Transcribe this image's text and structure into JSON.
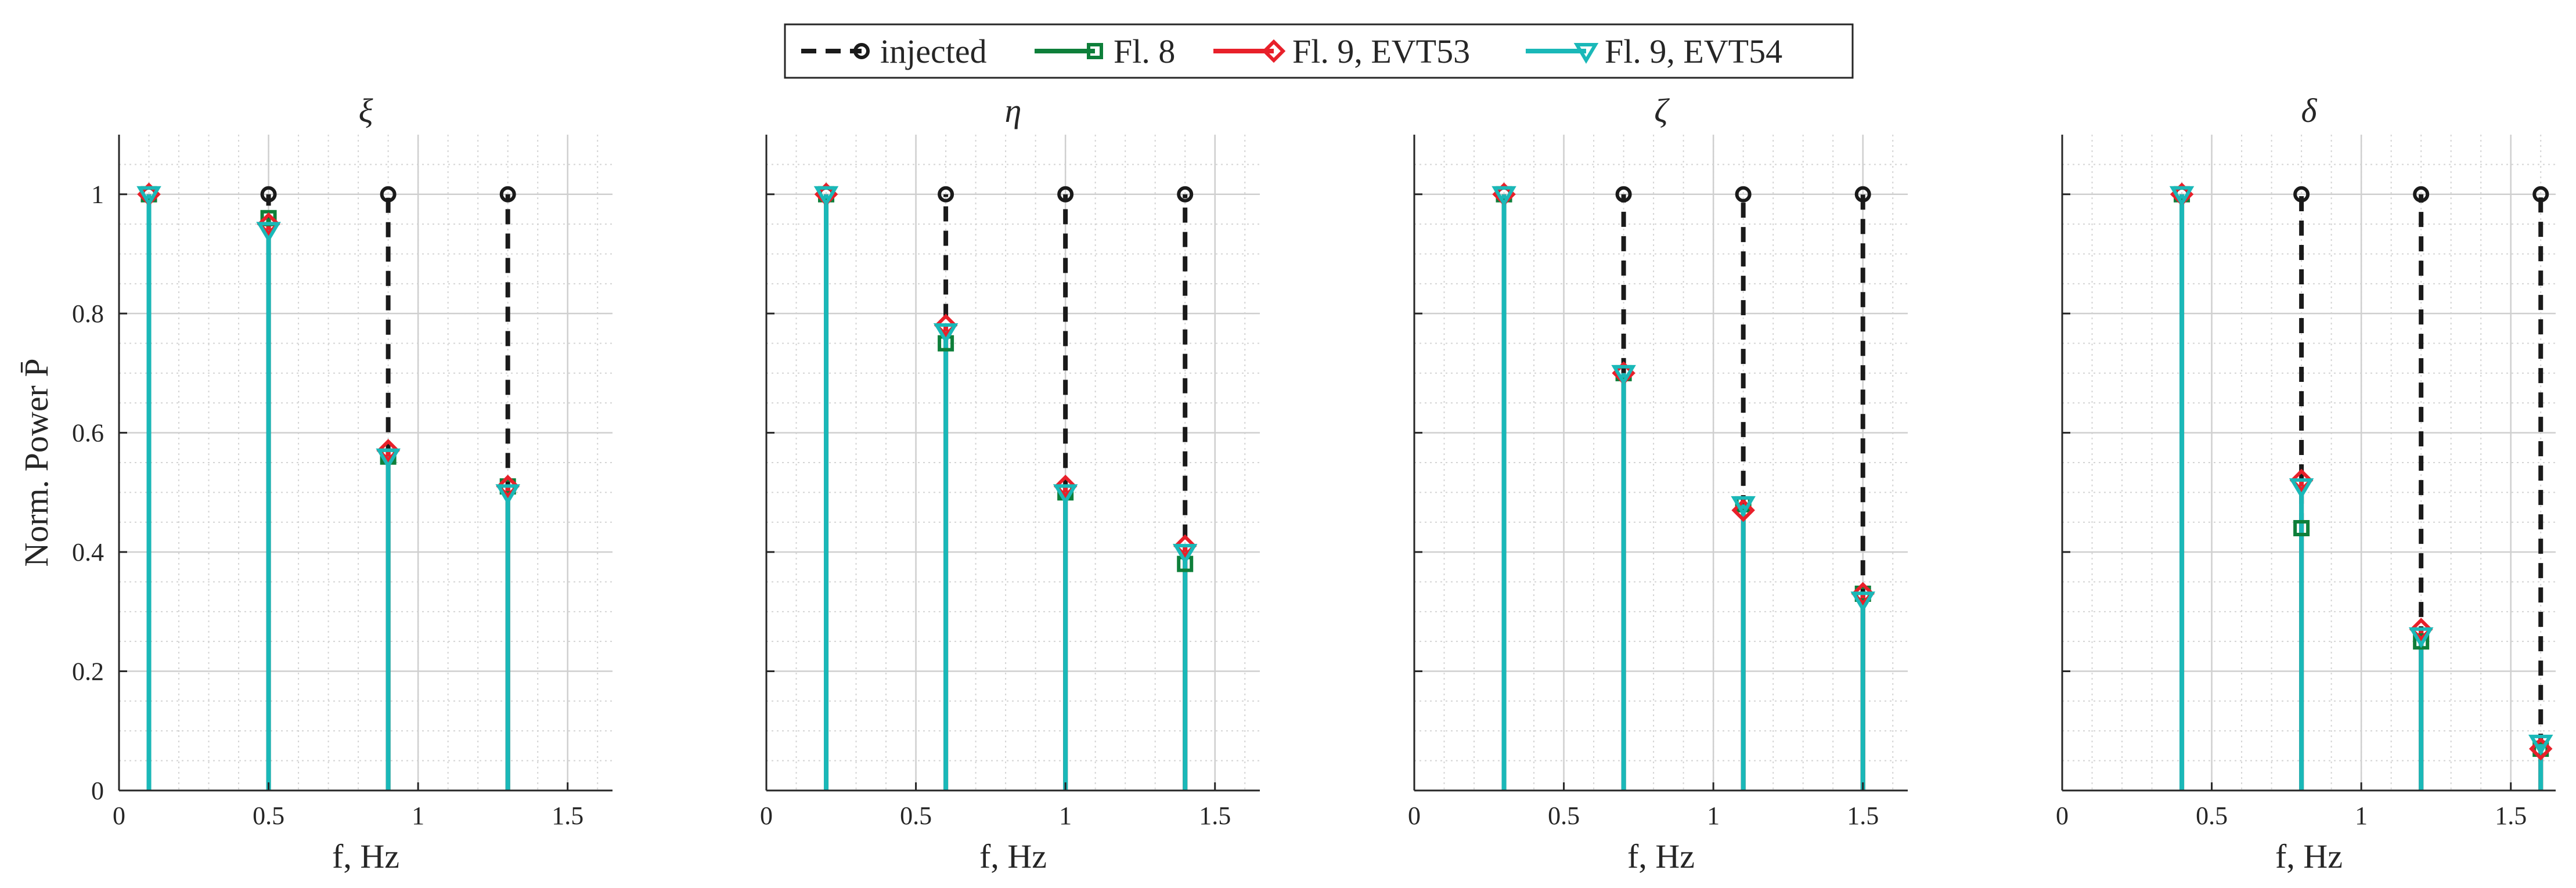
{
  "chart_data": {
    "type": "stem",
    "y_label": "Norm. Power P̄",
    "x_label": "f, Hz",
    "xlim": [
      0,
      1.65
    ],
    "ylim": [
      0,
      1.1
    ],
    "x_ticks": [
      0,
      0.5,
      1,
      1.5
    ],
    "x_tick_labels": [
      "0",
      "0.5",
      "1",
      "1.5"
    ],
    "y_ticks": [
      0,
      0.2,
      0.4,
      0.6,
      0.8,
      1
    ],
    "y_tick_labels": [
      "0",
      "0.2",
      "0.4",
      "0.6",
      "0.8",
      "1"
    ],
    "grid": true,
    "legend_position": "top-center",
    "legend": [
      {
        "name": "injected",
        "color": "#1a1a1a",
        "marker": "circle",
        "line": "dashed"
      },
      {
        "name": "Fl. 8",
        "color": "#0e7f3a",
        "marker": "square",
        "line": "solid"
      },
      {
        "name": "Fl. 9, EVT53",
        "color": "#e8202a",
        "marker": "diamond",
        "line": "solid"
      },
      {
        "name": "Fl. 9, EVT54",
        "color": "#1ab8b8",
        "marker": "triangle-down",
        "line": "solid"
      }
    ],
    "panels": [
      {
        "title": "ξ",
        "x": [
          0.1,
          0.5,
          0.9,
          1.3
        ],
        "series": [
          {
            "name": "injected",
            "values": [
              1.0,
              1.0,
              1.0,
              1.0
            ]
          },
          {
            "name": "Fl. 8",
            "values": [
              1.0,
              0.96,
              0.56,
              0.51
            ]
          },
          {
            "name": "Fl. 9, EVT53",
            "values": [
              1.0,
              0.95,
              0.57,
              0.51
            ]
          },
          {
            "name": "Fl. 9, EVT54",
            "values": [
              1.0,
              0.94,
              0.56,
              0.5
            ]
          }
        ]
      },
      {
        "title": "η",
        "x": [
          0.2,
          0.6,
          1.0,
          1.4
        ],
        "series": [
          {
            "name": "injected",
            "values": [
              1.0,
              1.0,
              1.0,
              1.0
            ]
          },
          {
            "name": "Fl. 8",
            "values": [
              1.0,
              0.75,
              0.5,
              0.38
            ]
          },
          {
            "name": "Fl. 9, EVT53",
            "values": [
              1.0,
              0.78,
              0.51,
              0.41
            ]
          },
          {
            "name": "Fl. 9, EVT54",
            "values": [
              1.0,
              0.77,
              0.5,
              0.4
            ]
          }
        ]
      },
      {
        "title": "ζ",
        "x": [
          0.3,
          0.7,
          1.1,
          1.5
        ],
        "series": [
          {
            "name": "injected",
            "values": [
              1.0,
              1.0,
              1.0,
              1.0
            ]
          },
          {
            "name": "Fl. 8",
            "values": [
              1.0,
              0.7,
              0.48,
              0.33
            ]
          },
          {
            "name": "Fl. 9, EVT53",
            "values": [
              1.0,
              0.7,
              0.47,
              0.33
            ]
          },
          {
            "name": "Fl. 9, EVT54",
            "values": [
              1.0,
              0.7,
              0.48,
              0.32
            ]
          }
        ]
      },
      {
        "title": "δ",
        "x": [
          0.4,
          0.8,
          1.2,
          1.6
        ],
        "series": [
          {
            "name": "injected",
            "values": [
              1.0,
              1.0,
              1.0,
              1.0
            ]
          },
          {
            "name": "Fl. 8",
            "values": [
              1.0,
              0.44,
              0.25,
              0.07
            ]
          },
          {
            "name": "Fl. 9, EVT53",
            "values": [
              1.0,
              0.52,
              0.27,
              0.07
            ]
          },
          {
            "name": "Fl. 9, EVT54",
            "values": [
              1.0,
              0.51,
              0.26,
              0.08
            ]
          }
        ]
      }
    ]
  }
}
